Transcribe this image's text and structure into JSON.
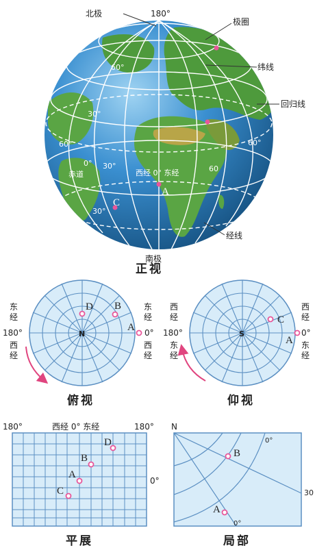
{
  "globe": {
    "north_pole": "北极",
    "south_pole": "南极",
    "top_lon": "180°",
    "polar_circle": "极圈",
    "parallel": "纬线",
    "tropic": "回归线",
    "meridian": "经线",
    "lat60_left": "60°",
    "lat30_left": "30°",
    "lat60_left2": "60°",
    "lat60_right": "60°",
    "zero_lon": "0°",
    "lon30": "30°",
    "equator": "赤道",
    "west_east": "西经 0° 东经",
    "lon60": "60",
    "lat30_bottom": "30°",
    "pt_a": "A",
    "pt_c": "C",
    "caption": "正视"
  },
  "top_view": {
    "east": [
      "东",
      "经"
    ],
    "west_left": [
      "西",
      "经"
    ],
    "lon180": "180°",
    "east_right": [
      "东",
      "经"
    ],
    "zero": "0°",
    "west_right": [
      "西",
      "经"
    ],
    "center": "N",
    "pt_a": "A",
    "pt_b": "B",
    "pt_d": "D",
    "caption": "俯视"
  },
  "bottom_view": {
    "west_left": [
      "西",
      "经"
    ],
    "lon180": "180°",
    "east_left": [
      "东",
      "经"
    ],
    "west_right": [
      "西",
      "经"
    ],
    "zero": "0°",
    "east_right": [
      "东",
      "经"
    ],
    "center": "S",
    "pt_a": "A",
    "pt_c": "C",
    "caption": "仰视"
  },
  "flat_view": {
    "left180": "180°",
    "mid": "西经 0° 东经",
    "right180": "180°",
    "zero_lat": "0°",
    "pt_a": "A",
    "pt_b": "B",
    "pt_c": "C",
    "pt_d": "D",
    "caption": "平展"
  },
  "local_view": {
    "north": "N",
    "zero_top": "0°",
    "thirty": "30",
    "zero_bottom": "0°",
    "pt_a": "A",
    "pt_b": "B",
    "caption": "局部"
  },
  "colors": {
    "ocean": "#2f7fc4",
    "land": "#4e9a3c",
    "grid_fill": "#d8ecf9",
    "grid_line": "#5b8fc2",
    "point": "#e8569a",
    "arrow": "#e0457f"
  }
}
